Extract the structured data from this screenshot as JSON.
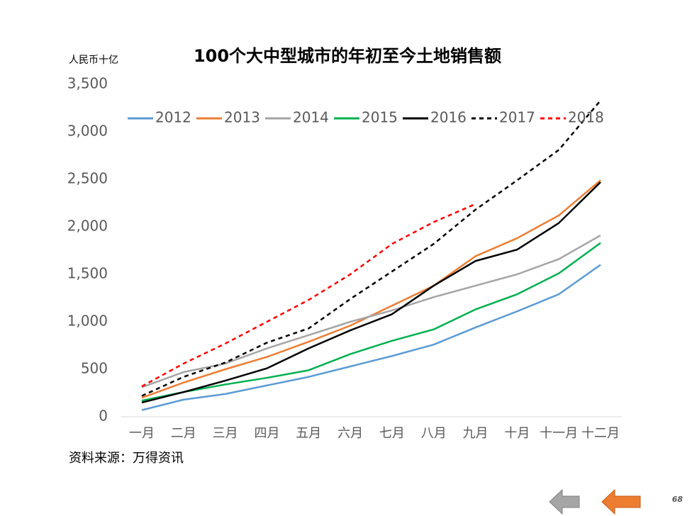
{
  "chart_data": {
    "type": "line",
    "title": "100个大中型城市的年初至今土地销售额",
    "y_label": "人民币十亿",
    "source": "资料来源：万得资讯",
    "page_number": "68",
    "categories": [
      "一月",
      "二月",
      "三月",
      "四月",
      "五月",
      "六月",
      "七月",
      "八月",
      "九月",
      "十月",
      "十一月",
      "十二月"
    ],
    "series": [
      {
        "name": "2012",
        "color": "#5b9bd5",
        "dashed": false,
        "values": [
          70,
          180,
          240,
          330,
          420,
          530,
          640,
          760,
          940,
          1110,
          1290,
          1600
        ]
      },
      {
        "name": "2013",
        "color": "#ed7d31",
        "dashed": false,
        "values": [
          200,
          360,
          500,
          630,
          790,
          960,
          1170,
          1380,
          1690,
          1880,
          2120,
          2490
        ]
      },
      {
        "name": "2014",
        "color": "#a5a5a5",
        "dashed": false,
        "values": [
          310,
          470,
          560,
          720,
          860,
          1000,
          1120,
          1260,
          1380,
          1500,
          1660,
          1910
        ]
      },
      {
        "name": "2015",
        "color": "#00b050",
        "dashed": false,
        "values": [
          170,
          260,
          340,
          410,
          490,
          660,
          800,
          920,
          1130,
          1290,
          1510,
          1830
        ]
      },
      {
        "name": "2016",
        "color": "#000000",
        "dashed": false,
        "values": [
          150,
          260,
          380,
          510,
          720,
          910,
          1080,
          1380,
          1640,
          1760,
          2040,
          2470
        ]
      },
      {
        "name": "2017",
        "color": "#000000",
        "dashed": true,
        "values": [
          220,
          420,
          570,
          780,
          930,
          1240,
          1530,
          1820,
          2180,
          2490,
          2810,
          3330
        ]
      },
      {
        "name": "2018",
        "color": "#ff0000",
        "dashed": true,
        "values": [
          320,
          560,
          770,
          1000,
          1230,
          1500,
          1820,
          2050,
          2240,
          null,
          null,
          null
        ]
      }
    ],
    "ylim": [
      0,
      3500
    ],
    "yticks": [
      0,
      500,
      {
        "value": 1000,
        "label": "1,000"
      },
      {
        "value": 1500,
        "label": "1,500"
      },
      {
        "value": 2000,
        "label": "2,000"
      },
      {
        "value": 2500,
        "label": "2,500"
      },
      {
        "value": 3000,
        "label": "3,000"
      },
      {
        "value": 3500,
        "label": "3,500"
      }
    ],
    "grid": false,
    "legend": "top"
  }
}
